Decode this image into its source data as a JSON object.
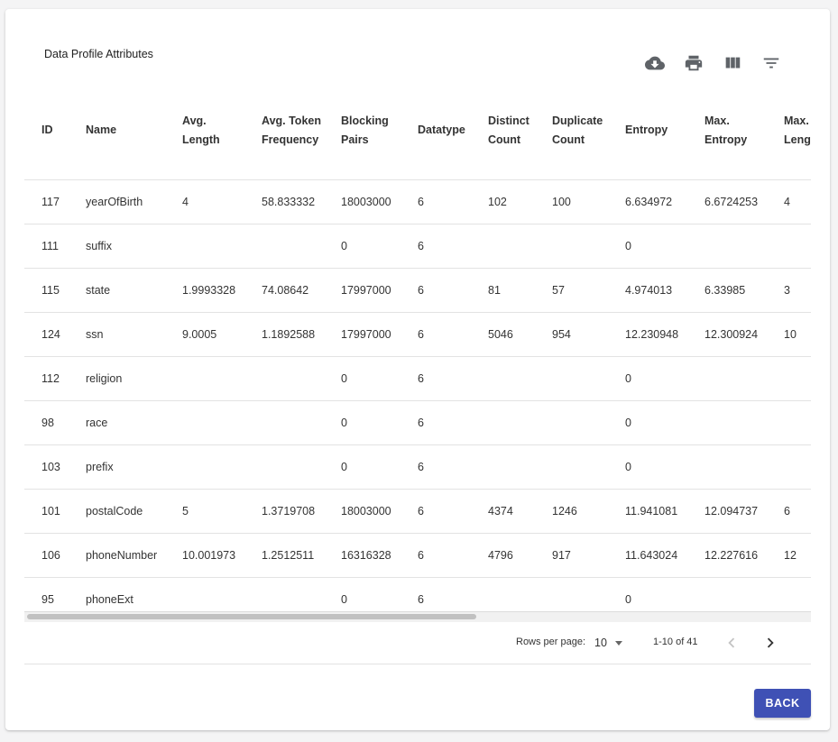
{
  "title": "Data Profile Attributes",
  "toolbar": {
    "icons": [
      "download-icon",
      "print-icon",
      "view-columns-icon",
      "filter-icon"
    ]
  },
  "table": {
    "columns": [
      "ID",
      "Name",
      "Avg. Length",
      "Avg. Token Frequency",
      "Blocking Pairs",
      "Datatype",
      "Distinct Count",
      "Duplicate Count",
      "Entropy",
      "Max. Entropy",
      "Max. Length"
    ],
    "rows": [
      [
        "117",
        "yearOfBirth",
        "4",
        "58.833332",
        "18003000",
        "6",
        "102",
        "100",
        "6.634972",
        "6.6724253",
        "4"
      ],
      [
        "111",
        "suffix",
        "",
        "",
        "0",
        "6",
        "",
        "",
        "0",
        "",
        ""
      ],
      [
        "115",
        "state",
        "1.9993328",
        "74.08642",
        "17997000",
        "6",
        "81",
        "57",
        "4.974013",
        "6.33985",
        "3"
      ],
      [
        "124",
        "ssn",
        "9.0005",
        "1.1892588",
        "17997000",
        "6",
        "5046",
        "954",
        "12.230948",
        "12.300924",
        "10"
      ],
      [
        "112",
        "religion",
        "",
        "",
        "0",
        "6",
        "",
        "",
        "0",
        "",
        ""
      ],
      [
        "98",
        "race",
        "",
        "",
        "0",
        "6",
        "",
        "",
        "0",
        "",
        ""
      ],
      [
        "103",
        "prefix",
        "",
        "",
        "0",
        "6",
        "",
        "",
        "0",
        "",
        ""
      ],
      [
        "101",
        "postalCode",
        "5",
        "1.3719708",
        "18003000",
        "6",
        "4374",
        "1246",
        "11.941081",
        "12.094737",
        "6"
      ],
      [
        "106",
        "phoneNumber",
        "10.001973",
        "1.2512511",
        "16316328",
        "6",
        "4796",
        "917",
        "11.643024",
        "12.227616",
        "12"
      ],
      [
        "95",
        "phoneExt",
        "",
        "",
        "0",
        "6",
        "",
        "",
        "0",
        "",
        ""
      ]
    ]
  },
  "pagination": {
    "rows_per_page_label": "Rows per page:",
    "rows_per_page_value": "10",
    "range_text": "1-10 of 41",
    "prev_icon": "chevron-left-icon",
    "next_icon": "chevron-right-icon"
  },
  "back_label": "BACK",
  "colors": {
    "accent": "#3f51b5",
    "icon": "#5f6368"
  }
}
